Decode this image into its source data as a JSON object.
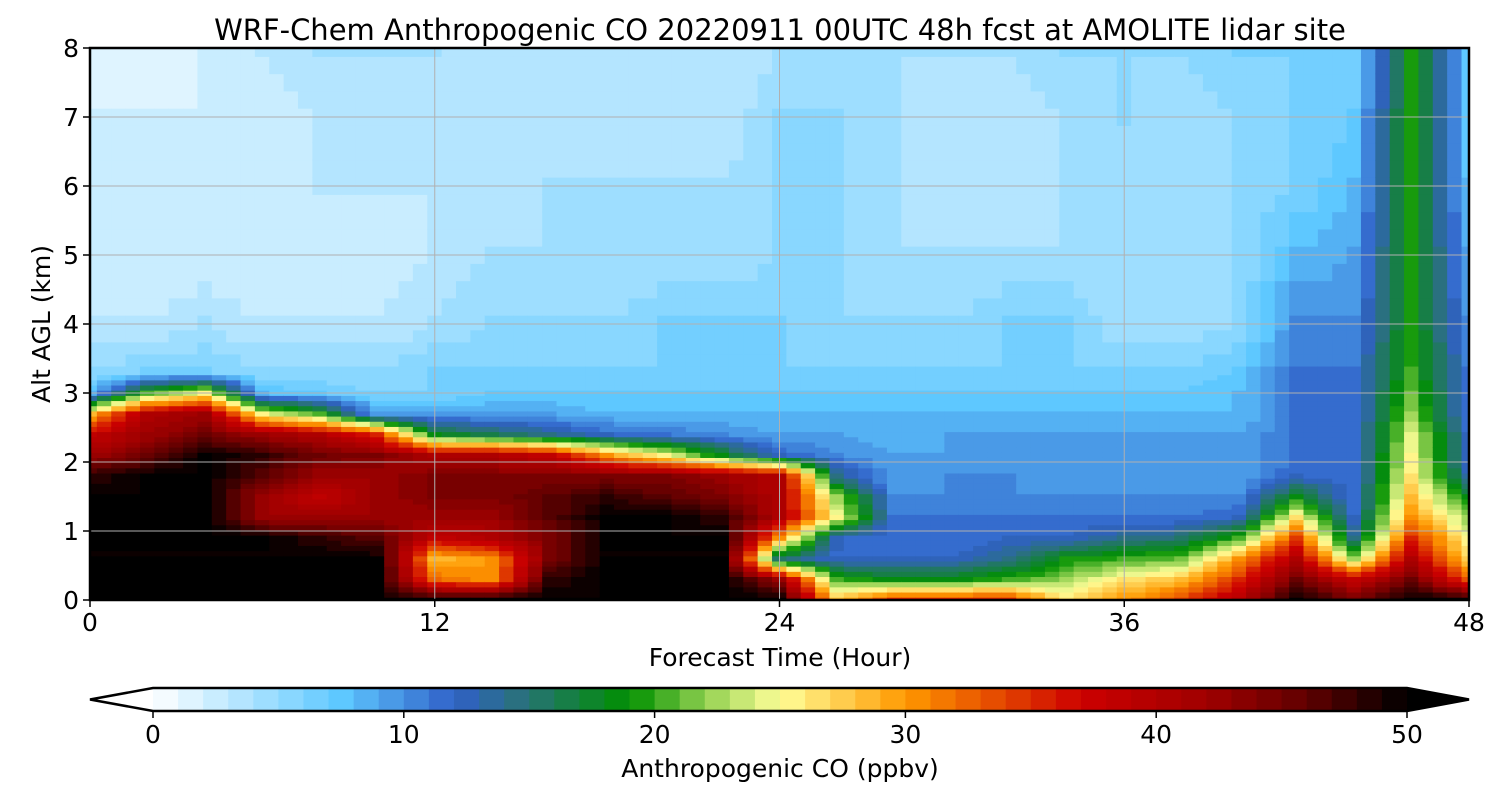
{
  "chart_data": {
    "type": "heatmap",
    "title": "WRF-Chem Anthropogenic CO  20220911 00UTC 48h fcst at AMOLITE lidar site",
    "xlabel": "Forecast Time (Hour)",
    "ylabel": "Alt AGL (km)",
    "xlim": [
      0,
      48
    ],
    "ylim": [
      0,
      8
    ],
    "xticks": [
      "0",
      "12",
      "24",
      "36",
      "48"
    ],
    "yticks": [
      "0",
      "1",
      "2",
      "3",
      "4",
      "5",
      "6",
      "7",
      "8"
    ],
    "grid": true,
    "colorbar": {
      "label": "Anthropogenic CO  (ppbv)",
      "ticks": [
        "0",
        "10",
        "20",
        "30",
        "40",
        "50"
      ],
      "range": [
        0,
        50
      ],
      "extend": "both",
      "stops": [
        [
          0,
          "#ffffff"
        ],
        [
          7.5,
          "#5ec8ff"
        ],
        [
          12,
          "#3060c8"
        ],
        [
          14.5,
          "#2a7080"
        ],
        [
          19,
          "#009000"
        ],
        [
          22,
          "#90d050"
        ],
        [
          25,
          "#ffff99"
        ],
        [
          30,
          "#ff9900"
        ],
        [
          37,
          "#cc0000"
        ],
        [
          42,
          "#a00000"
        ],
        [
          46,
          "#600000"
        ],
        [
          50,
          "#000000"
        ]
      ]
    },
    "x": [
      0,
      2,
      4,
      6,
      8,
      10,
      12,
      14,
      16,
      18,
      20,
      22,
      24,
      26,
      28,
      30,
      32,
      34,
      36,
      38,
      40,
      42,
      44,
      46,
      48
    ],
    "y": [
      0,
      0.3,
      0.6,
      0.9,
      1.2,
      1.5,
      1.8,
      2.1,
      2.4,
      2.7,
      3.0,
      3.3,
      4,
      5,
      6,
      7,
      8
    ],
    "z": [
      [
        50,
        50,
        50,
        50,
        50,
        50,
        48,
        42,
        38,
        28,
        8,
        5,
        3,
        2,
        2,
        2,
        1
      ],
      [
        50,
        50,
        50,
        50,
        50,
        50,
        50,
        45,
        42,
        40,
        20,
        6,
        3,
        2,
        2,
        2,
        1
      ],
      [
        50,
        50,
        50,
        50,
        50,
        50,
        50,
        50,
        45,
        42,
        25,
        6,
        4,
        2,
        2,
        2,
        2
      ],
      [
        50,
        50,
        50,
        50,
        42,
        42,
        46,
        48,
        42,
        25,
        8,
        5,
        3,
        2,
        2,
        2,
        3
      ],
      [
        50,
        50,
        50,
        48,
        42,
        38,
        42,
        45,
        40,
        20,
        7,
        5,
        3,
        2,
        3,
        3,
        4
      ],
      [
        50,
        50,
        50,
        46,
        42,
        42,
        42,
        44,
        35,
        9,
        6,
        5,
        3,
        2,
        3,
        3,
        4
      ],
      [
        50,
        32,
        28,
        38,
        42,
        44,
        44,
        40,
        18,
        9,
        6,
        6,
        4,
        3,
        3,
        3,
        4
      ],
      [
        50,
        30,
        30,
        40,
        42,
        44,
        44,
        40,
        16,
        9,
        7,
        6,
        5,
        4,
        3,
        3,
        3
      ],
      [
        50,
        48,
        44,
        44,
        46,
        46,
        44,
        38,
        14,
        9,
        7,
        6,
        5,
        4,
        4,
        3,
        3
      ],
      [
        50,
        50,
        50,
        50,
        50,
        48,
        44,
        30,
        12,
        8,
        7,
        6,
        5,
        4,
        4,
        3,
        3
      ],
      [
        50,
        50,
        50,
        50,
        50,
        46,
        44,
        25,
        11,
        8,
        7,
        6,
        6,
        4,
        4,
        3,
        3
      ],
      [
        50,
        50,
        50,
        50,
        48,
        44,
        42,
        18,
        10,
        8,
        7,
        6,
        6,
        4,
        4,
        3,
        3
      ],
      [
        50,
        42,
        15,
        30,
        40,
        40,
        40,
        12,
        9,
        8,
        7,
        6,
        6,
        5,
        5,
        5,
        4
      ],
      [
        28,
        20,
        12,
        12,
        25,
        22,
        14,
        10,
        9,
        8,
        7,
        6,
        5,
        5,
        5,
        5,
        4
      ],
      [
        35,
        18,
        12,
        11,
        11,
        10,
        9,
        9,
        8,
        8,
        7,
        6,
        5,
        4,
        4,
        4,
        4
      ],
      [
        35,
        18,
        12,
        11,
        11,
        10,
        10,
        9,
        9,
        8,
        7,
        6,
        5,
        4,
        3,
        3,
        4
      ],
      [
        35,
        20,
        14,
        12,
        11,
        10,
        10,
        9,
        9,
        8,
        7,
        6,
        6,
        4,
        3,
        3,
        4
      ],
      [
        26,
        22,
        19,
        12,
        11,
        10,
        9,
        9,
        9,
        8,
        7,
        6,
        6,
        4,
        4,
        4,
        5
      ],
      [
        30,
        26,
        20,
        14,
        11,
        10,
        9,
        9,
        9,
        8,
        7,
        6,
        4,
        4,
        4,
        5,
        5
      ],
      [
        34,
        28,
        21,
        15,
        11,
        10,
        9,
        9,
        9,
        8,
        7,
        6,
        4,
        4,
        4,
        4,
        5
      ],
      [
        40,
        35,
        30,
        20,
        12,
        10,
        9,
        9,
        9,
        8,
        8,
        7,
        5,
        5,
        5,
        5,
        6
      ],
      [
        50,
        45,
        40,
        34,
        26,
        18,
        12,
        11,
        11,
        11,
        11,
        11,
        10,
        8,
        6,
        6,
        6
      ],
      [
        45,
        38,
        22,
        14,
        12,
        11,
        11,
        11,
        11,
        11,
        11,
        11,
        10,
        9,
        8,
        7,
        6
      ],
      [
        50,
        45,
        40,
        35,
        30,
        28,
        26,
        25,
        24,
        22,
        21,
        20,
        19,
        19,
        19,
        19,
        19
      ],
      [
        50,
        33,
        27,
        25,
        22,
        18,
        13,
        12,
        12,
        11,
        11,
        11,
        10,
        9,
        8,
        7,
        7
      ]
    ]
  }
}
